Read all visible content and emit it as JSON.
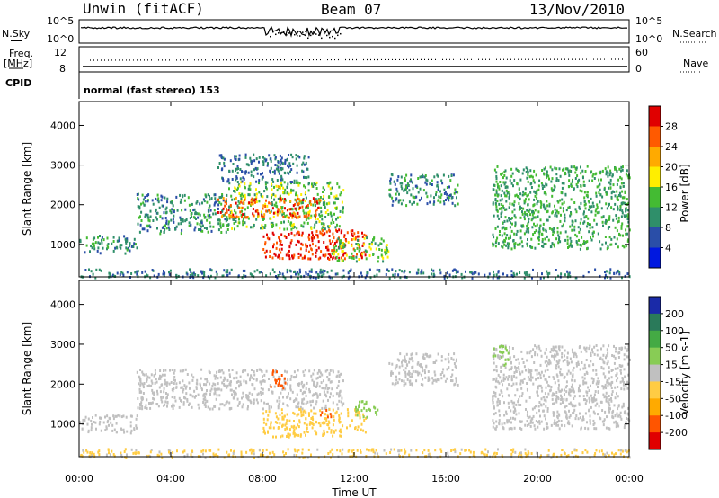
{
  "header": {
    "station": "Unwin (fitACF)",
    "beam": "Beam 07",
    "date": "13/Nov/2010"
  },
  "aux": {
    "nsky_label": "N.Sky",
    "nsearch_label": "N.Search",
    "freq_label": "Freq.",
    "freq_unit": "[MHz]",
    "nave_label": "Nave",
    "cpid_label": "CPID",
    "cpid_value": "normal (fast stereo) 153",
    "noise_ticks_left": [
      "10^5",
      "10^0"
    ],
    "noise_ticks_right": [
      "10^5",
      "10^0"
    ],
    "freq_ticks": [
      "12",
      "8"
    ],
    "nave_ticks": [
      "60",
      "0"
    ]
  },
  "chart_data": [
    {
      "type": "heatmap",
      "panel": "power",
      "ylabel": "Slant Range [km]",
      "xlabel": "",
      "ylim": [
        180,
        4600
      ],
      "xlim": [
        0,
        24
      ],
      "yticks": [
        "1000",
        "2000",
        "3000",
        "4000"
      ],
      "colorbar": {
        "label": "Power [dB]",
        "ticks": [
          "28",
          "24",
          "20",
          "16",
          "12",
          "8",
          "4"
        ],
        "colors": [
          "#e00000",
          "#ff5a00",
          "#ffaa00",
          "#ffee00",
          "#44bb33",
          "#2f8f6a",
          "#2a4ea8",
          "#0018e0"
        ]
      },
      "regions": [
        {
          "t": [
            0.0,
            2.5
          ],
          "r": [
            800,
            1250
          ],
          "level": 8
        },
        {
          "t": [
            2.5,
            6.5
          ],
          "r": [
            1300,
            2300
          ],
          "level": 8
        },
        {
          "t": [
            6.5,
            11.5
          ],
          "r": [
            1400,
            2600
          ],
          "level": 12
        },
        {
          "t": [
            6.0,
            10.5
          ],
          "r": [
            1700,
            2200
          ],
          "level": 24
        },
        {
          "t": [
            8.3,
            9.0
          ],
          "r": [
            2300,
            2600
          ],
          "level": 16
        },
        {
          "t": [
            8.0,
            12.5
          ],
          "r": [
            650,
            1400
          ],
          "level": 26
        },
        {
          "t": [
            11.0,
            13.5
          ],
          "r": [
            600,
            1200
          ],
          "level": 12
        },
        {
          "t": [
            6.0,
            10.0
          ],
          "r": [
            2600,
            3300
          ],
          "level": 6
        },
        {
          "t": [
            13.5,
            16.5
          ],
          "r": [
            2000,
            2800
          ],
          "level": 8
        },
        {
          "t": [
            18.0,
            24.0
          ],
          "r": [
            900,
            3000
          ],
          "level": 10
        },
        {
          "t": [
            0.0,
            24.0
          ],
          "r": [
            180,
            400
          ],
          "level": 6
        }
      ]
    },
    {
      "type": "heatmap",
      "panel": "velocity",
      "ylabel": "Slant Range [km]",
      "xlabel": "Time UT",
      "ylim": [
        180,
        4600
      ],
      "xlim": [
        0,
        24
      ],
      "yticks": [
        "1000",
        "2000",
        "3000",
        "4000"
      ],
      "xticks": [
        "00:00",
        "04:00",
        "08:00",
        "12:00",
        "16:00",
        "20:00",
        "00:00"
      ],
      "colorbar": {
        "label": "Velocity [m s-1]",
        "ticks": [
          "200",
          "100",
          "50",
          "15",
          "-15",
          "-50",
          "-100",
          "-200"
        ],
        "colors": [
          "#1a2aa8",
          "#2a7a5a",
          "#44aa44",
          "#88cc55",
          "#c0c0c0",
          "#ffcc44",
          "#ffaa00",
          "#ff5500",
          "#e00000"
        ]
      },
      "regions": [
        {
          "t": [
            0.0,
            2.5
          ],
          "r": [
            800,
            1250
          ],
          "v": 0
        },
        {
          "t": [
            2.5,
            11.5
          ],
          "r": [
            1400,
            2400
          ],
          "v": 0
        },
        {
          "t": [
            8.3,
            9.0
          ],
          "r": [
            1900,
            2400
          ],
          "v": -180
        },
        {
          "t": [
            8.0,
            12.5
          ],
          "r": [
            700,
            1400
          ],
          "v": -40
        },
        {
          "t": [
            10.5,
            11.0
          ],
          "r": [
            1200,
            1400
          ],
          "v": -150
        },
        {
          "t": [
            12.0,
            13.0
          ],
          "r": [
            1200,
            1600
          ],
          "v": 40
        },
        {
          "t": [
            13.5,
            16.5
          ],
          "r": [
            2000,
            2800
          ],
          "v": 0
        },
        {
          "t": [
            18.0,
            24.0
          ],
          "r": [
            900,
            3000
          ],
          "v": 0
        },
        {
          "t": [
            18.0,
            18.7
          ],
          "r": [
            2500,
            3000
          ],
          "v": 30
        },
        {
          "t": [
            0.0,
            24.0
          ],
          "r": [
            180,
            400
          ],
          "v": -20
        }
      ]
    }
  ]
}
